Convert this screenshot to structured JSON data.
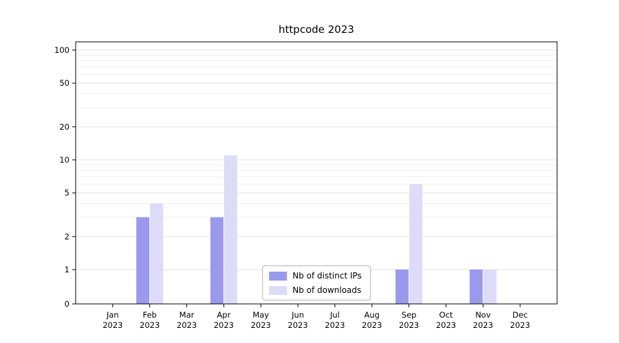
{
  "title": "httpcode 2023",
  "chart_data": {
    "type": "bar",
    "title": "httpcode 2023",
    "scale": "symlog",
    "grid_on": true,
    "legend_position": "lower center",
    "xlabel": "",
    "ylabel": "",
    "categories": [
      "Jan 2023",
      "Feb 2023",
      "Mar 2023",
      "Apr 2023",
      "May 2023",
      "Jun 2023",
      "Jul 2023",
      "Aug 2023",
      "Sep 2023",
      "Oct 2023",
      "Nov 2023",
      "Dec 2023"
    ],
    "series": [
      {
        "name": "Nb of distinct IPs",
        "color": "#9999ee",
        "values": [
          0,
          3,
          0,
          3,
          0,
          0,
          0,
          0,
          1,
          0,
          1,
          0
        ]
      },
      {
        "name": "Nb of downloads",
        "color": "#dcdcf8",
        "values": [
          0,
          4,
          0,
          11,
          0,
          0,
          0,
          0,
          6,
          0,
          1,
          0
        ]
      }
    ],
    "yticks": [
      0,
      1,
      2,
      5,
      10,
      20,
      50,
      100
    ],
    "ylim": [
      0,
      120
    ],
    "grid": {
      "major": [
        1,
        2,
        5,
        10,
        20,
        50,
        100
      ],
      "minor": [
        3,
        4,
        6,
        7,
        8,
        9,
        30,
        40,
        60,
        70,
        80,
        90
      ]
    }
  }
}
